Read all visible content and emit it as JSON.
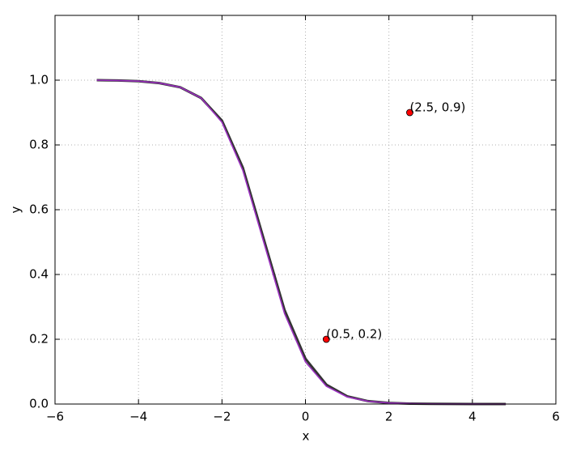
{
  "chart_data": {
    "type": "line",
    "xlabel": "x",
    "ylabel": "y",
    "x": [
      -5,
      -4.5,
      -4,
      -3.5,
      -3,
      -2.5,
      -2,
      -1.5,
      -1,
      -0.5,
      0,
      0.5,
      1,
      1.5,
      2,
      2.5,
      3,
      3.5,
      4,
      4.5,
      4.8
    ],
    "series": [
      {
        "color": "#333333",
        "values": [
          1.0,
          0.999,
          0.997,
          0.991,
          0.978,
          0.945,
          0.875,
          0.73,
          0.51,
          0.29,
          0.14,
          0.06,
          0.024,
          0.009,
          0.0035,
          0.0013,
          0.0005,
          0.0002,
          0.0001,
          0,
          0
        ]
      },
      {
        "color": "#9b30c0",
        "values": [
          1.0,
          0.999,
          0.997,
          0.991,
          0.978,
          0.945,
          0.87,
          0.721,
          0.5,
          0.279,
          0.13,
          0.055,
          0.022,
          0.0086,
          0.0033,
          0.0013,
          0.0005,
          0.0002,
          0.0001,
          0,
          0
        ]
      }
    ],
    "points": {
      "x": [
        0.5,
        2.5
      ],
      "y": [
        0.2,
        0.9
      ],
      "color": "#ff0000",
      "labels": [
        "(0.5, 0.2)",
        "(2.5, 0.9)"
      ]
    },
    "xlim": [
      -6,
      6
    ],
    "xticks": [
      {
        "value": -6,
        "label": "−6"
      },
      {
        "value": -4,
        "label": "−4"
      },
      {
        "value": -2,
        "label": "−2"
      },
      0,
      2,
      4,
      6
    ],
    "ylim": [
      0,
      1.2
    ],
    "yticks": [
      {
        "value": 0,
        "label": "0.0"
      },
      0.2,
      0.4,
      0.6,
      0.8,
      {
        "value": 1,
        "label": "1.0"
      }
    ],
    "grid": true
  }
}
